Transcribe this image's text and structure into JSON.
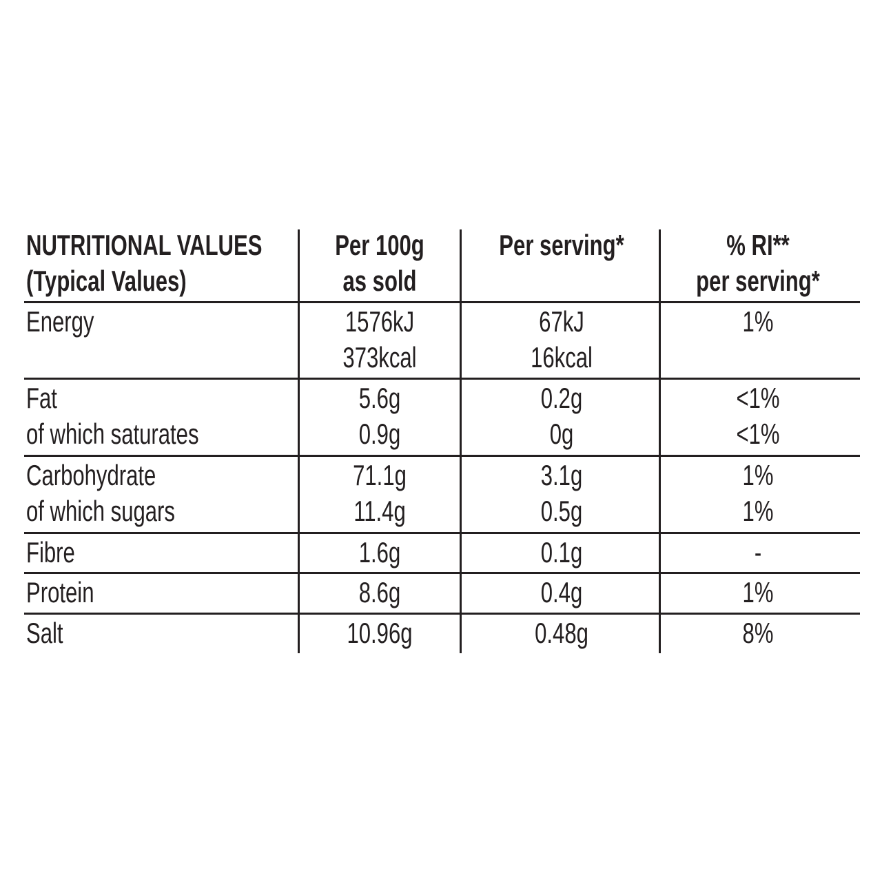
{
  "header": {
    "columns": [
      [
        "NUTRITIONAL VALUES",
        "(Typical Values)"
      ],
      [
        "Per 100g",
        "as sold"
      ],
      [
        "Per serving*"
      ],
      [
        "% RI**",
        "per serving*"
      ]
    ]
  },
  "table": {
    "rows": [
      [
        [
          "Energy"
        ],
        [
          "1576kJ",
          "373kcal"
        ],
        [
          "67kJ",
          "16kcal"
        ],
        [
          "1%"
        ]
      ],
      [
        [
          "Fat",
          "of which saturates"
        ],
        [
          "5.6g",
          "0.9g"
        ],
        [
          "0.2g",
          "0g"
        ],
        [
          "<1%",
          "<1%"
        ]
      ],
      [
        [
          "Carbohydrate",
          "of which sugars"
        ],
        [
          "71.1g",
          "11.4g"
        ],
        [
          "3.1g",
          "0.5g"
        ],
        [
          "1%",
          "1%"
        ]
      ],
      [
        [
          "Fibre"
        ],
        [
          "1.6g"
        ],
        [
          "0.1g"
        ],
        [
          "-"
        ]
      ],
      [
        [
          "Protein"
        ],
        [
          "8.6g"
        ],
        [
          "0.4g"
        ],
        [
          "1%"
        ]
      ],
      [
        [
          "Salt"
        ],
        [
          "10.96g"
        ],
        [
          "0.48g"
        ],
        [
          "8%"
        ]
      ]
    ]
  }
}
